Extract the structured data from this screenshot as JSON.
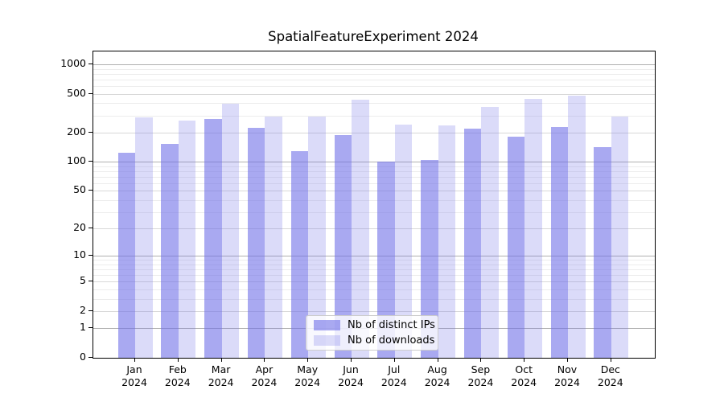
{
  "title": "SpatialFeatureExperiment 2024",
  "chart_data": {
    "type": "bar",
    "title": "SpatialFeatureExperiment 2024",
    "yscale": "log1p",
    "ylim": [
      0,
      1358
    ],
    "grid": true,
    "legend_position": "lower center",
    "y_ticks": [
      1000,
      500,
      200,
      100,
      50,
      20,
      10,
      5,
      2,
      1,
      0
    ],
    "categories": [
      "Jan 2024",
      "Feb 2024",
      "Mar 2024",
      "Apr 2024",
      "May 2024",
      "Jun 2024",
      "Jul 2024",
      "Aug 2024",
      "Sep 2024",
      "Oct 2024",
      "Nov 2024",
      "Dec 2024"
    ],
    "series": [
      {
        "name": "Nb of distinct IPs",
        "color": "#7070e8",
        "alpha": 0.6,
        "values": [
          124,
          152,
          275,
          223,
          130,
          188,
          100,
          104,
          218,
          182,
          228,
          143
        ]
      },
      {
        "name": "Nb of downloads",
        "color": "#7070e8",
        "alpha": 0.25,
        "values": [
          289,
          265,
          395,
          291,
          290,
          439,
          242,
          238,
          368,
          442,
          477,
          290
        ]
      }
    ],
    "colors": {
      "grid_major": "#b0b0b0",
      "grid_labeled": "#d8d8d8",
      "grid_minor": "#ececec",
      "spine": "#000000"
    }
  }
}
